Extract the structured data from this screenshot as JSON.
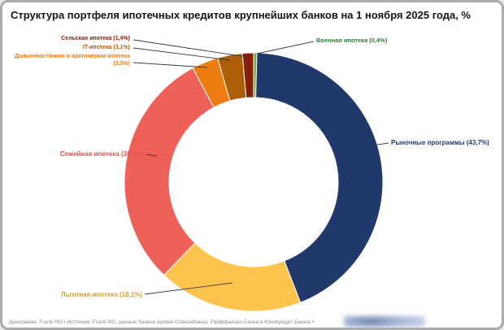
{
  "chart_data": {
    "type": "pie",
    "subtype": "donut",
    "title": "Структура портфеля ипотечных кредитов крупнейших банков на 1 ноября 2025 года, %",
    "unit": "%",
    "direction": "clockwise",
    "start_angle_deg": 0,
    "inner_radius_ratio": 0.65,
    "segments": [
      {
        "name": "Военная ипотека",
        "label": "Военная ипотека (0,4%)",
        "value": 0.4,
        "color": "#6FAE3E",
        "label_color": "#2E7D33"
      },
      {
        "name": "Рыночные программы",
        "label": "Рыночные программы (43,7%)",
        "value": 43.7,
        "color": "#20386A",
        "label_color": "#20386A"
      },
      {
        "name": "Льготная ипотека",
        "label": "Льготная ипотека (18,1%)",
        "value": 18.1,
        "color": "#FEC34D",
        "label_color": "#D99E22"
      },
      {
        "name": "Семейная ипотека",
        "label": "Семейная ипотека (30,0%)",
        "value": 30.0,
        "color": "#EF6158",
        "label_color": "#E2544B"
      },
      {
        "name": "Дальневосточная и арктическая ипотека",
        "label": "Дальневосточная и арктическая ипотека (3,3%)",
        "value": 3.3,
        "color": "#EE7D11",
        "label_color": "#EE7D11"
      },
      {
        "name": "IT-ипотека",
        "label": "IT-ипотека (3,1%)",
        "value": 3.1,
        "color": "#AF5E08",
        "label_color": "#AF5E08"
      },
      {
        "name": "Сельская ипотека",
        "label": "Сельская ипотека (1,4%)",
        "value": 1.4,
        "color": "#84200A",
        "label_color": "#84200A"
      }
    ]
  },
  "footer": {
    "text": "Диаграмма: Frank RG • Источник: Frank RG, данные банков (кроме Совкомбанка, Райффайзен Банка и ЮниКредит Банка) •"
  }
}
